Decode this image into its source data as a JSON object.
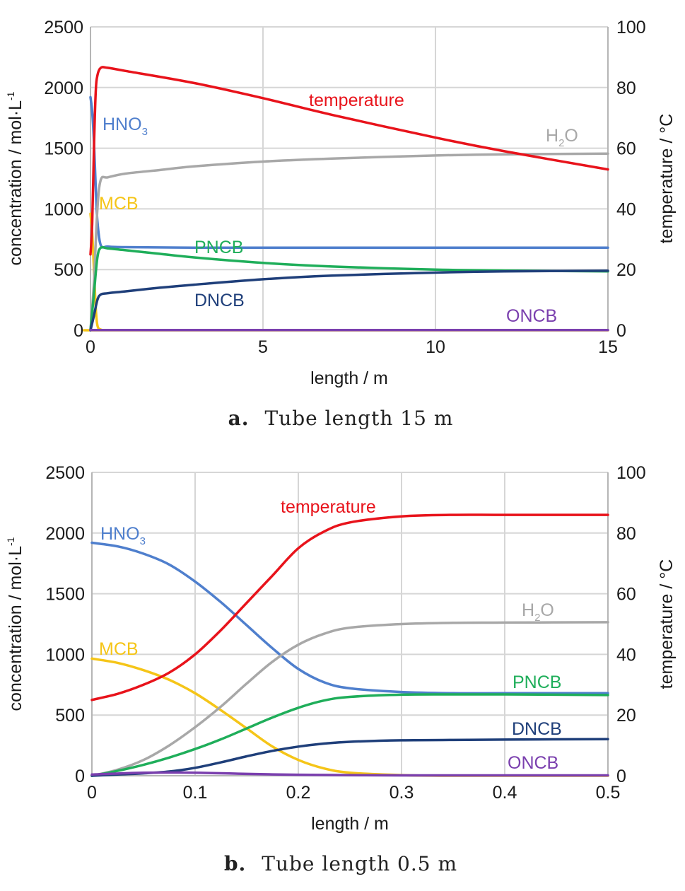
{
  "chart_data": [
    {
      "type": "line",
      "caption_label": "a.",
      "caption_text": "Tube length 15 m",
      "xlabel": "length / m",
      "ylabel": "concentration / mol·L",
      "ylabel_superscript": "-1",
      "y2label": "temperature / °C",
      "xlim": [
        0,
        15
      ],
      "ylim": [
        0,
        2500
      ],
      "y2lim": [
        0,
        100
      ],
      "x_ticks": [
        "0",
        "5",
        "10",
        "15"
      ],
      "y_ticks": [
        "0",
        "500",
        "1000",
        "1500",
        "2000",
        "2500"
      ],
      "y2_ticks": [
        "0",
        "20",
        "40",
        "60",
        "80",
        "100"
      ],
      "grid": true,
      "series": [
        {
          "name": "HNO3",
          "label_main": "HNO",
          "label_sub": "3",
          "color": "#4f7fcd",
          "axis": "left",
          "x": [
            0,
            0.05,
            0.1,
            0.15,
            0.2,
            0.3,
            0.5,
            1,
            3,
            6,
            10,
            15
          ],
          "y": [
            1920,
            1800,
            1550,
            1200,
            900,
            700,
            690,
            685,
            680,
            680,
            680,
            680
          ]
        },
        {
          "name": "MCB",
          "label_main": "MCB",
          "label_sub": "",
          "color": "#f5c518",
          "axis": "left",
          "x": [
            0,
            0.05,
            0.1,
            0.15,
            0.2,
            0.3,
            0.5,
            1,
            15
          ],
          "y": [
            960,
            800,
            500,
            200,
            40,
            5,
            0,
            0,
            0
          ]
        },
        {
          "name": "H2O",
          "label_main": "H",
          "label_sub": "2",
          "label_tail": "O",
          "color": "#a8a8a8",
          "axis": "left",
          "x": [
            0,
            0.1,
            0.2,
            0.3,
            0.5,
            1,
            2,
            3,
            5,
            7,
            10,
            12,
            15
          ],
          "y": [
            0,
            400,
            1000,
            1240,
            1260,
            1290,
            1320,
            1350,
            1390,
            1415,
            1440,
            1450,
            1455
          ]
        },
        {
          "name": "PNCB",
          "label_main": "PNCB",
          "label_sub": "",
          "color": "#1fae5a",
          "axis": "left",
          "x": [
            0,
            0.1,
            0.2,
            0.3,
            0.5,
            1,
            2,
            3,
            5,
            7,
            10,
            12,
            15
          ],
          "y": [
            0,
            300,
            600,
            680,
            675,
            660,
            630,
            600,
            555,
            525,
            500,
            492,
            485
          ]
        },
        {
          "name": "DNCB",
          "label_main": "DNCB",
          "label_sub": "",
          "color": "#1f3f7a",
          "axis": "left",
          "x": [
            0,
            0.1,
            0.2,
            0.3,
            0.5,
            1,
            2,
            3,
            5,
            7,
            10,
            12,
            15
          ],
          "y": [
            0,
            120,
            250,
            295,
            305,
            320,
            350,
            375,
            420,
            450,
            475,
            485,
            490
          ]
        },
        {
          "name": "ONCB",
          "label_main": "ONCB",
          "label_sub": "",
          "color": "#7a3fae",
          "axis": "left",
          "x": [
            0,
            0.3,
            1,
            5,
            10,
            15
          ],
          "y": [
            2,
            2,
            2,
            2,
            2,
            2
          ]
        },
        {
          "name": "temperature",
          "label_main": "temperature",
          "label_sub": "",
          "color": "#e8131b",
          "axis": "right",
          "x": [
            0,
            0.05,
            0.1,
            0.15,
            0.2,
            0.3,
            0.5,
            1,
            3,
            5,
            7,
            10,
            12,
            15
          ],
          "y": [
            25,
            35,
            60,
            78,
            84,
            86.5,
            86.5,
            85.5,
            81.5,
            76.5,
            71,
            63.5,
            59,
            53
          ]
        }
      ]
    },
    {
      "type": "line",
      "caption_label": "b.",
      "caption_text": "Tube length 0.5 m",
      "xlabel": "length / m",
      "ylabel": "concentration / mol·L",
      "ylabel_superscript": "-1",
      "y2label": "temperature / °C",
      "xlim": [
        0,
        0.5
      ],
      "ylim": [
        0,
        2500
      ],
      "y2lim": [
        0,
        100
      ],
      "x_ticks": [
        "0",
        "0.1",
        "0.2",
        "0.3",
        "0.4",
        "0.5"
      ],
      "y_ticks": [
        "0",
        "500",
        "1000",
        "1500",
        "2000",
        "2500"
      ],
      "y2_ticks": [
        "0",
        "20",
        "40",
        "60",
        "80",
        "100"
      ],
      "grid": true,
      "series": [
        {
          "name": "HNO3",
          "label_main": "HNO",
          "label_sub": "3",
          "color": "#4f7fcd",
          "axis": "left",
          "x": [
            0,
            0.025,
            0.05,
            0.075,
            0.1,
            0.125,
            0.15,
            0.175,
            0.2,
            0.225,
            0.25,
            0.3,
            0.35,
            0.4,
            0.5
          ],
          "y": [
            1920,
            1890,
            1830,
            1740,
            1600,
            1430,
            1240,
            1050,
            880,
            770,
            720,
            690,
            680,
            680,
            680
          ]
        },
        {
          "name": "MCB",
          "label_main": "MCB",
          "label_sub": "",
          "color": "#f5c518",
          "axis": "left",
          "x": [
            0,
            0.025,
            0.05,
            0.075,
            0.1,
            0.125,
            0.15,
            0.175,
            0.2,
            0.225,
            0.25,
            0.3,
            0.35,
            0.4,
            0.5
          ],
          "y": [
            965,
            930,
            870,
            790,
            680,
            540,
            390,
            240,
            130,
            60,
            25,
            5,
            0,
            0,
            0
          ]
        },
        {
          "name": "H2O",
          "label_main": "H",
          "label_sub": "2",
          "label_tail": "O",
          "color": "#a8a8a8",
          "axis": "left",
          "x": [
            0,
            0.025,
            0.05,
            0.075,
            0.1,
            0.125,
            0.15,
            0.175,
            0.2,
            0.225,
            0.25,
            0.3,
            0.35,
            0.4,
            0.5
          ],
          "y": [
            0,
            50,
            130,
            250,
            400,
            570,
            760,
            940,
            1080,
            1170,
            1220,
            1250,
            1260,
            1262,
            1265
          ]
        },
        {
          "name": "PNCB",
          "label_main": "PNCB",
          "label_sub": "",
          "color": "#1fae5a",
          "axis": "left",
          "x": [
            0,
            0.025,
            0.05,
            0.075,
            0.1,
            0.125,
            0.15,
            0.175,
            0.2,
            0.225,
            0.25,
            0.3,
            0.35,
            0.4,
            0.5
          ],
          "y": [
            0,
            40,
            90,
            150,
            220,
            300,
            390,
            480,
            560,
            620,
            650,
            668,
            670,
            670,
            665
          ]
        },
        {
          "name": "DNCB",
          "label_main": "DNCB",
          "label_sub": "",
          "color": "#1f3f7a",
          "axis": "left",
          "x": [
            0,
            0.025,
            0.05,
            0.075,
            0.1,
            0.125,
            0.15,
            0.175,
            0.2,
            0.225,
            0.25,
            0.3,
            0.35,
            0.4,
            0.5
          ],
          "y": [
            0,
            10,
            20,
            35,
            65,
            110,
            160,
            205,
            240,
            265,
            280,
            292,
            295,
            298,
            302
          ]
        },
        {
          "name": "ONCB",
          "label_main": "ONCB",
          "label_sub": "",
          "color": "#7a3fae",
          "axis": "left",
          "x": [
            0,
            0.05,
            0.1,
            0.15,
            0.2,
            0.25,
            0.3,
            0.4,
            0.5
          ],
          "y": [
            10,
            25,
            25,
            15,
            8,
            5,
            3,
            3,
            3
          ]
        },
        {
          "name": "temperature",
          "label_main": "temperature",
          "label_sub": "",
          "color": "#e8131b",
          "axis": "right",
          "x": [
            0,
            0.025,
            0.05,
            0.075,
            0.1,
            0.125,
            0.15,
            0.175,
            0.2,
            0.225,
            0.25,
            0.3,
            0.35,
            0.4,
            0.5
          ],
          "y": [
            25,
            27,
            30,
            34,
            40,
            48,
            57,
            66,
            75,
            80.5,
            83.5,
            85.5,
            86,
            86,
            86
          ]
        }
      ]
    }
  ]
}
